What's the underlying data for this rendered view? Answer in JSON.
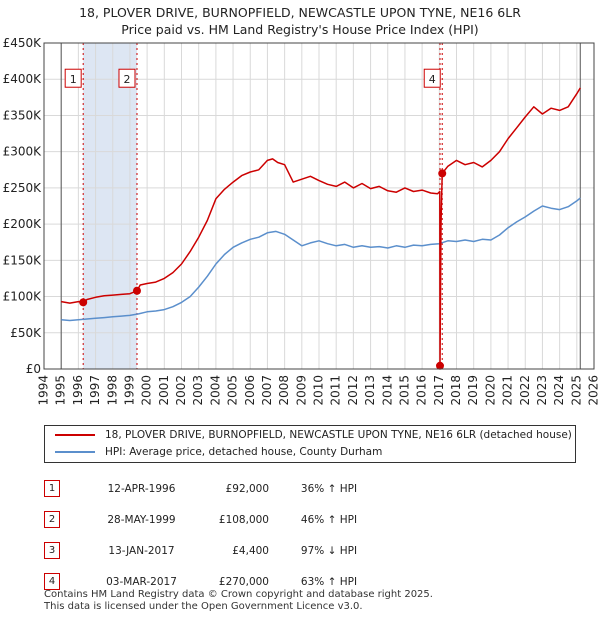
{
  "title_line1": "18, PLOVER DRIVE, BURNOPFIELD, NEWCASTLE UPON TYNE, NE16 6LR",
  "title_line2": "Price paid vs. HM Land Registry's House Price Index (HPI)",
  "colors": {
    "property": "#cc0000",
    "hpi": "#5b8fcc",
    "shade": "#dde6f3",
    "grid": "#d9d9d9"
  },
  "chart_data": {
    "type": "line",
    "x_range": [
      1994,
      2026
    ],
    "ylim": [
      0,
      450000
    ],
    "y_ticks": [
      0,
      50000,
      100000,
      150000,
      200000,
      250000,
      300000,
      350000,
      400000,
      450000
    ],
    "y_tick_labels": [
      "£0",
      "£50K",
      "£100K",
      "£150K",
      "£200K",
      "£250K",
      "£300K",
      "£350K",
      "£400K",
      "£450K"
    ],
    "x_ticks": [
      1994,
      1995,
      1996,
      1997,
      1998,
      1999,
      2000,
      2001,
      2002,
      2003,
      2004,
      2005,
      2006,
      2007,
      2008,
      2009,
      2010,
      2011,
      2012,
      2013,
      2014,
      2015,
      2016,
      2017,
      2018,
      2019,
      2020,
      2021,
      2022,
      2023,
      2024,
      2025,
      2026
    ],
    "data_start": 1995.0,
    "data_end": 2025.2,
    "shaded_spans": [
      [
        1996.28,
        1999.41
      ]
    ],
    "series": [
      {
        "name": "18, PLOVER DRIVE, BURNOPFIELD, NEWCASTLE UPON TYNE, NE16 6LR (detached house)",
        "x": [
          1995.0,
          1995.5,
          1996.0,
          1996.28,
          1996.5,
          1997.0,
          1997.5,
          1998.0,
          1998.5,
          1999.0,
          1999.41,
          1999.6,
          2000.0,
          2000.5,
          2001.0,
          2001.5,
          2002.0,
          2002.5,
          2003.0,
          2003.5,
          2004.0,
          2004.5,
          2005.0,
          2005.5,
          2006.0,
          2006.5,
          2007.0,
          2007.3,
          2007.6,
          2008.0,
          2008.5,
          2009.0,
          2009.5,
          2010.0,
          2010.5,
          2011.0,
          2011.5,
          2012.0,
          2012.5,
          2013.0,
          2013.5,
          2014.0,
          2014.5,
          2015.0,
          2015.5,
          2016.0,
          2016.5,
          2016.9,
          2017.03,
          2017.04,
          2017.1,
          2017.17,
          2017.5,
          2018.0,
          2018.5,
          2019.0,
          2019.5,
          2020.0,
          2020.5,
          2021.0,
          2021.5,
          2022.0,
          2022.5,
          2023.0,
          2023.5,
          2024.0,
          2024.5,
          2025.0,
          2025.2
        ],
        "y": [
          93000,
          91000,
          93000,
          92000,
          96000,
          99000,
          101000,
          102000,
          103000,
          104000,
          108000,
          116000,
          118000,
          120000,
          125000,
          133000,
          145000,
          162000,
          182000,
          205000,
          235000,
          248000,
          258000,
          267000,
          272000,
          275000,
          288000,
          290000,
          285000,
          282000,
          258000,
          262000,
          266000,
          260000,
          255000,
          252000,
          258000,
          250000,
          256000,
          249000,
          252000,
          246000,
          244000,
          250000,
          245000,
          247000,
          243000,
          242000,
          245000,
          4400,
          200000,
          270000,
          280000,
          288000,
          282000,
          285000,
          279000,
          288000,
          300000,
          318000,
          333000,
          348000,
          362000,
          352000,
          360000,
          357000,
          362000,
          380000,
          388000
        ]
      },
      {
        "name": "HPI: Average price, detached house, County Durham",
        "x": [
          1995.0,
          1995.5,
          1996.0,
          1996.5,
          1997.0,
          1997.5,
          1998.0,
          1998.5,
          1999.0,
          1999.5,
          2000.0,
          2000.5,
          2001.0,
          2001.5,
          2002.0,
          2002.5,
          2003.0,
          2003.5,
          2004.0,
          2004.5,
          2005.0,
          2005.5,
          2006.0,
          2006.5,
          2007.0,
          2007.5,
          2008.0,
          2008.5,
          2009.0,
          2009.5,
          2010.0,
          2010.5,
          2011.0,
          2011.5,
          2012.0,
          2012.5,
          2013.0,
          2013.5,
          2014.0,
          2014.5,
          2015.0,
          2015.5,
          2016.0,
          2016.5,
          2017.0,
          2017.5,
          2018.0,
          2018.5,
          2019.0,
          2019.5,
          2020.0,
          2020.5,
          2021.0,
          2021.5,
          2022.0,
          2022.5,
          2023.0,
          2023.5,
          2024.0,
          2024.5,
          2025.0,
          2025.2
        ],
        "y": [
          68000,
          67000,
          68000,
          69000,
          70000,
          71000,
          72000,
          73000,
          74000,
          76000,
          79000,
          80000,
          82000,
          86000,
          92000,
          100000,
          113000,
          128000,
          145000,
          158000,
          168000,
          174000,
          179000,
          182000,
          188000,
          190000,
          186000,
          178000,
          170000,
          174000,
          177000,
          173000,
          170000,
          172000,
          168000,
          170000,
          168000,
          169000,
          167000,
          170000,
          168000,
          171000,
          170000,
          172000,
          173000,
          177000,
          176000,
          178000,
          176000,
          179000,
          178000,
          185000,
          195000,
          203000,
          210000,
          218000,
          225000,
          222000,
          220000,
          224000,
          232000,
          236000
        ]
      }
    ],
    "markers": [
      {
        "label": "1",
        "x": 1996.28,
        "y": 92000
      },
      {
        "label": "2",
        "x": 1999.41,
        "y": 108000
      },
      {
        "label": "3",
        "x": 2017.04,
        "y": 4400
      },
      {
        "label": "4",
        "x": 2017.17,
        "y": 270000
      }
    ],
    "marker_boxes": [
      {
        "label": "1",
        "x": 1996.28,
        "y": 400000
      },
      {
        "label": "2",
        "x": 1999.41,
        "y": 400000
      },
      {
        "label": "4",
        "x": 2017.17,
        "y": 400000
      }
    ]
  },
  "legend": {
    "property_label": "18, PLOVER DRIVE, BURNOPFIELD, NEWCASTLE UPON TYNE, NE16 6LR (detached house)",
    "hpi_label": "HPI: Average price, detached house, County Durham"
  },
  "transactions": [
    {
      "num": "1",
      "date": "12-APR-1996",
      "price": "£92,000",
      "hpi": "36% ↑ HPI"
    },
    {
      "num": "2",
      "date": "28-MAY-1999",
      "price": "£108,000",
      "hpi": "46% ↑ HPI"
    },
    {
      "num": "3",
      "date": "13-JAN-2017",
      "price": "£4,400",
      "hpi": "97% ↓ HPI"
    },
    {
      "num": "4",
      "date": "03-MAR-2017",
      "price": "£270,000",
      "hpi": "63% ↑ HPI"
    }
  ],
  "footer": {
    "line1": "Contains HM Land Registry data © Crown copyright and database right 2025.",
    "line2": "This data is licensed under the Open Government Licence v3.0."
  }
}
